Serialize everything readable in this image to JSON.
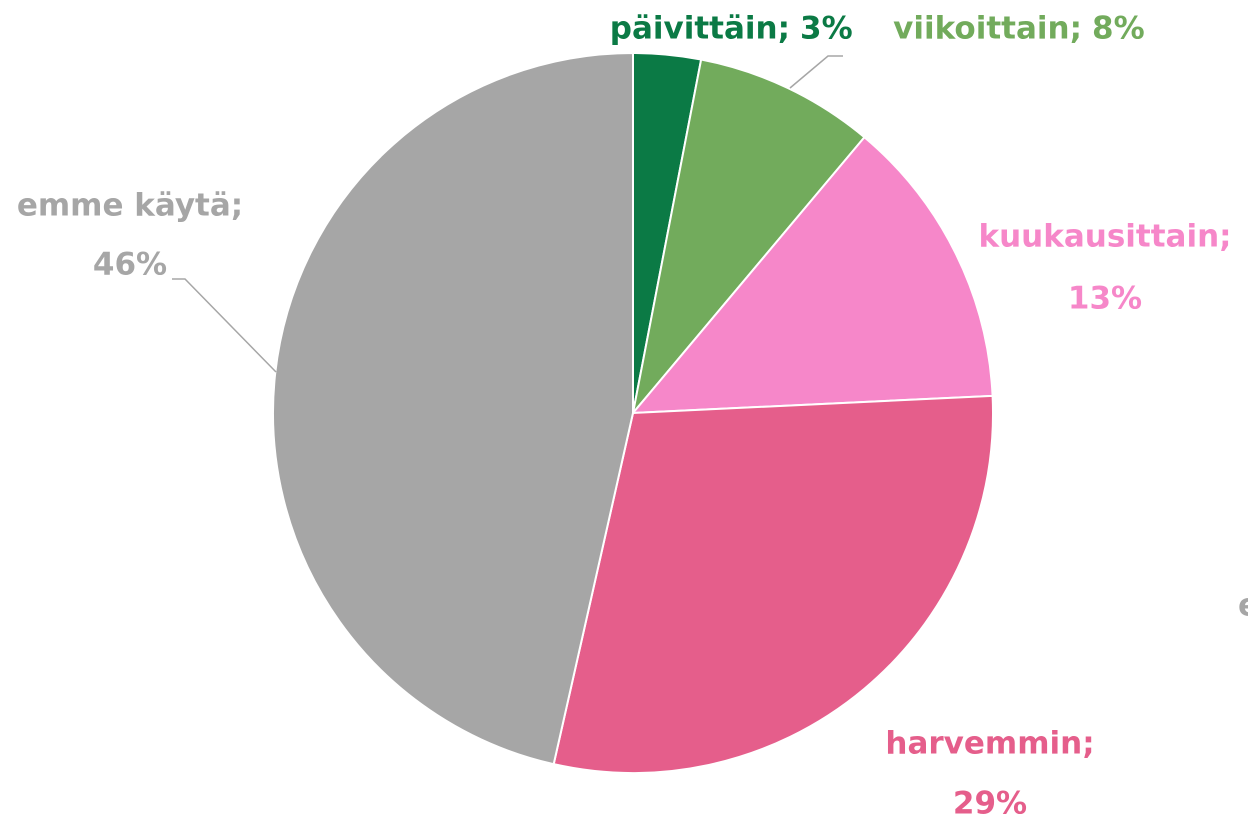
{
  "chart_data": {
    "type": "pie",
    "categories": [
      "päivittäin;",
      "viikoittain;",
      "kuukausittain;",
      "harvemmin;",
      "emme käytä;"
    ],
    "values": [
      3,
      8,
      13,
      29,
      46
    ],
    "value_labels": [
      "3%",
      "8%",
      "13%",
      "29%",
      "46%"
    ],
    "colors": [
      "#0b7a45",
      "#72ab5c",
      "#f687c9",
      "#e55e8b",
      "#a6a6a6"
    ],
    "annotations": [
      "e"
    ]
  }
}
